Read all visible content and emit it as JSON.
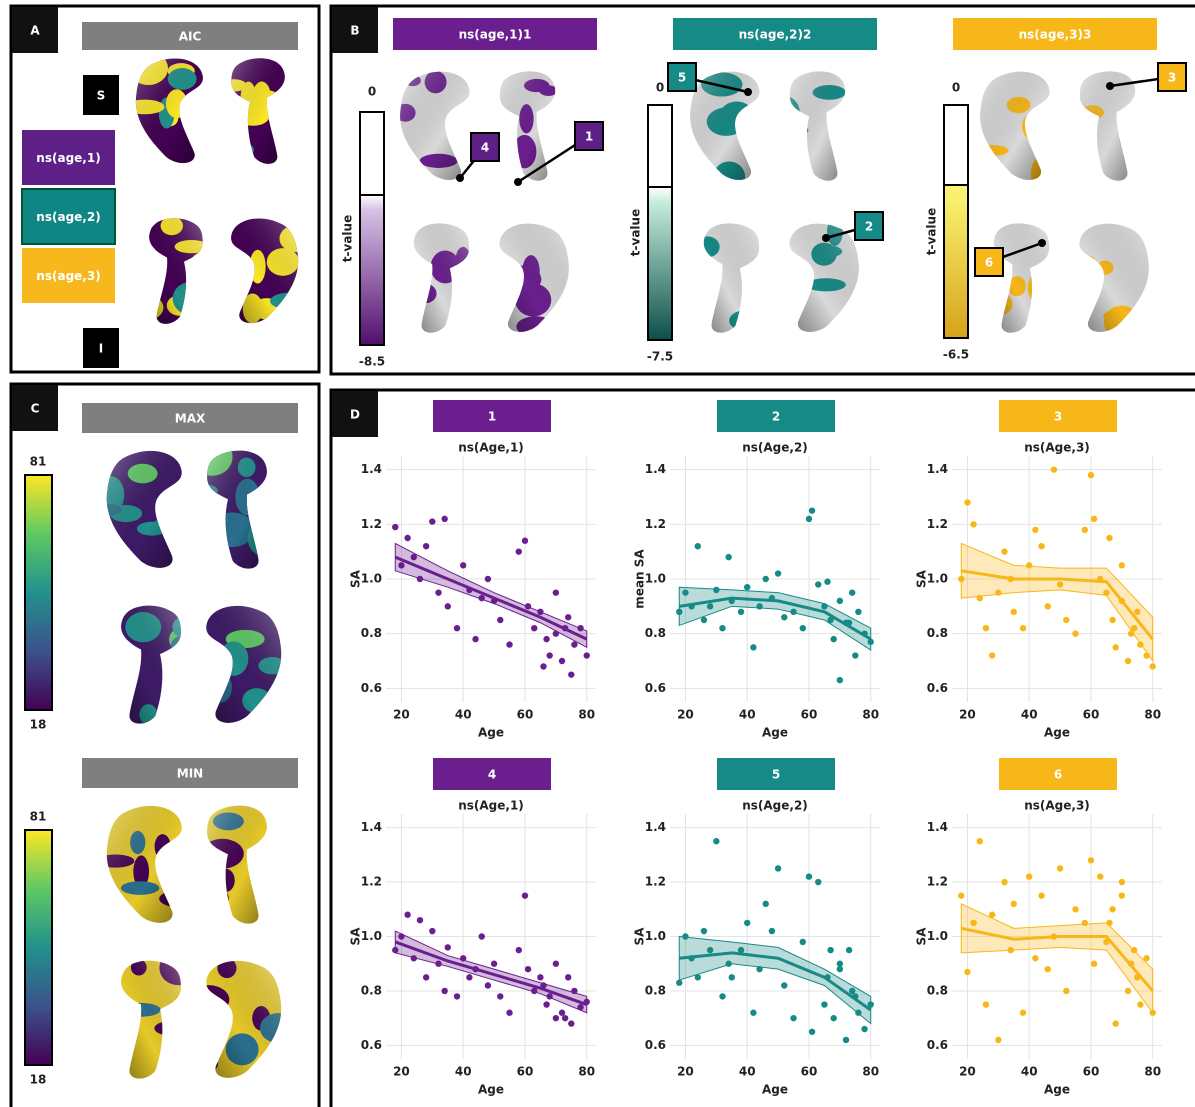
{
  "panel_a": {
    "label": "A",
    "header": "AIC",
    "views": [
      "S",
      "I"
    ],
    "legend": [
      "ns(age,1)",
      "ns(age,2)",
      "ns(age,3)"
    ],
    "colors": [
      "#5e1f86",
      "#0f8683",
      "#f7b81e"
    ]
  },
  "panel_b": {
    "label": "B",
    "scale_label": "t-value",
    "maps": [
      {
        "header": "ns(age,1)1",
        "color": "#6b1f8f",
        "scale": [
          0,
          -8.5
        ]
      },
      {
        "header": "ns(age,2)2",
        "color": "#168a86",
        "scale": [
          0,
          -7.5
        ]
      },
      {
        "header": "ns(age,3)3",
        "color": "#f8b719",
        "scale": [
          0,
          -6.5
        ]
      }
    ],
    "callouts": [
      "1",
      "2",
      "3",
      "4",
      "5",
      "6"
    ]
  },
  "panel_c": {
    "label": "C",
    "maps": [
      {
        "header": "MAX",
        "scale": [
          81,
          18
        ]
      },
      {
        "header": "MIN",
        "scale": [
          81,
          18
        ]
      }
    ]
  },
  "panel_d": {
    "label": "D"
  },
  "chart_data": [
    {
      "type": "scatter",
      "header": "1",
      "title": "ns(Age,1)",
      "y_label": "SA",
      "x_label": "Age",
      "color": "#6b1f8f",
      "grid": true,
      "xlim": [
        15,
        83
      ],
      "ylim": [
        0.55,
        1.45
      ],
      "xticks": [
        20,
        40,
        60,
        80
      ],
      "yticks": [
        0.6,
        0.8,
        {
          "value": 1,
          "label": "1.0"
        },
        1.2,
        1.4
      ],
      "x": [
        18,
        20,
        22,
        24,
        26,
        28,
        30,
        32,
        34,
        35,
        38,
        40,
        42,
        44,
        46,
        48,
        50,
        52,
        55,
        58,
        60,
        61,
        63,
        65,
        67,
        68,
        70,
        72,
        74,
        75,
        76,
        78,
        80,
        70,
        66,
        73
      ],
      "values": [
        1.19,
        1.05,
        1.15,
        1.08,
        1.0,
        1.12,
        1.21,
        0.95,
        1.22,
        0.9,
        0.82,
        1.05,
        0.96,
        0.78,
        0.93,
        1.0,
        0.92,
        0.85,
        0.76,
        1.1,
        1.14,
        0.9,
        0.82,
        0.88,
        0.78,
        0.72,
        0.8,
        0.7,
        0.86,
        0.65,
        0.76,
        0.82,
        0.72,
        0.95,
        0.68,
        0.82
      ],
      "fit": {
        "x": [
          18,
          35,
          50,
          65,
          80
        ],
        "values": [
          1.08,
          1.0,
          0.93,
          0.86,
          0.78
        ],
        "lower": [
          1.03,
          0.97,
          0.91,
          0.84,
          0.75
        ],
        "upper": [
          1.13,
          1.03,
          0.95,
          0.88,
          0.81
        ]
      }
    },
    {
      "type": "scatter",
      "header": "2",
      "title": "ns(Age,2)",
      "y_label": "mean SA",
      "x_label": "Age",
      "color": "#168a86",
      "grid": true,
      "xlim": [
        15,
        83
      ],
      "ylim": [
        0.55,
        1.45
      ],
      "xticks": [
        20,
        40,
        60,
        80
      ],
      "yticks": [
        0.6,
        0.8,
        {
          "value": 1,
          "label": "1.0"
        },
        1.2,
        1.4
      ],
      "x": [
        18,
        20,
        22,
        24,
        26,
        28,
        30,
        32,
        34,
        35,
        38,
        40,
        42,
        44,
        46,
        48,
        50,
        52,
        55,
        58,
        60,
        61,
        63,
        65,
        67,
        68,
        70,
        72,
        74,
        75,
        76,
        78,
        80,
        70,
        66,
        73
      ],
      "values": [
        0.88,
        0.95,
        0.9,
        1.12,
        0.85,
        0.9,
        0.96,
        0.82,
        1.08,
        0.92,
        0.88,
        0.97,
        0.75,
        0.9,
        1.0,
        0.93,
        1.02,
        0.86,
        0.88,
        0.82,
        1.22,
        1.25,
        0.98,
        0.9,
        0.85,
        0.78,
        0.63,
        0.84,
        0.95,
        0.72,
        0.88,
        0.8,
        0.77,
        0.92,
        0.99,
        0.84
      ],
      "fit": {
        "x": [
          18,
          35,
          50,
          65,
          80
        ],
        "values": [
          0.9,
          0.93,
          0.92,
          0.88,
          0.78
        ],
        "lower": [
          0.83,
          0.9,
          0.89,
          0.85,
          0.74
        ],
        "upper": [
          0.97,
          0.96,
          0.95,
          0.91,
          0.82
        ]
      }
    },
    {
      "type": "scatter",
      "header": "3",
      "title": "ns(Age,3)",
      "y_label": "SA",
      "x_label": "Age",
      "color": "#f8b719",
      "grid": true,
      "xlim": [
        15,
        83
      ],
      "ylim": [
        0.55,
        1.45
      ],
      "xticks": [
        20,
        40,
        60,
        80
      ],
      "yticks": [
        0.6,
        0.8,
        {
          "value": 1,
          "label": "1.0"
        },
        1.2,
        1.4
      ],
      "x": [
        18,
        20,
        22,
        24,
        26,
        28,
        30,
        32,
        34,
        35,
        38,
        40,
        42,
        44,
        46,
        48,
        50,
        52,
        55,
        58,
        60,
        61,
        63,
        65,
        67,
        68,
        70,
        72,
        74,
        75,
        76,
        78,
        80,
        70,
        66,
        73
      ],
      "values": [
        1.0,
        1.28,
        1.2,
        0.93,
        0.82,
        0.72,
        0.95,
        1.1,
        1.0,
        0.88,
        0.82,
        1.05,
        1.18,
        1.12,
        0.9,
        1.4,
        0.98,
        0.85,
        0.8,
        1.18,
        1.38,
        1.22,
        1.0,
        0.95,
        0.85,
        0.75,
        1.05,
        0.7,
        0.82,
        0.88,
        0.76,
        0.72,
        0.68,
        0.92,
        1.15,
        0.8
      ],
      "fit": {
        "x": [
          18,
          35,
          50,
          65,
          80
        ],
        "values": [
          1.03,
          1.0,
          1.0,
          0.99,
          0.78
        ],
        "lower": [
          0.93,
          0.95,
          0.96,
          0.94,
          0.7
        ],
        "upper": [
          1.13,
          1.05,
          1.04,
          1.04,
          0.86
        ]
      }
    },
    {
      "type": "scatter",
      "header": "4",
      "title": "ns(Age,1)",
      "y_label": "SA",
      "x_label": "Age",
      "color": "#6b1f8f",
      "grid": true,
      "xlim": [
        15,
        83
      ],
      "ylim": [
        0.55,
        1.45
      ],
      "xticks": [
        20,
        40,
        60,
        80
      ],
      "yticks": [
        0.6,
        0.8,
        {
          "value": 1,
          "label": "1.0"
        },
        1.2,
        1.4
      ],
      "x": [
        18,
        20,
        22,
        24,
        26,
        28,
        30,
        32,
        34,
        35,
        38,
        40,
        42,
        44,
        46,
        48,
        50,
        52,
        55,
        58,
        60,
        61,
        63,
        65,
        67,
        68,
        70,
        72,
        74,
        75,
        76,
        78,
        80,
        70,
        66,
        73
      ],
      "values": [
        0.95,
        1.0,
        1.08,
        0.92,
        1.06,
        0.85,
        1.02,
        0.9,
        0.8,
        0.96,
        0.78,
        0.92,
        0.85,
        0.88,
        1.0,
        0.82,
        0.9,
        0.78,
        0.72,
        0.95,
        1.15,
        0.88,
        0.8,
        0.85,
        0.75,
        0.78,
        0.7,
        0.72,
        0.85,
        0.68,
        0.8,
        0.74,
        0.76,
        0.9,
        0.82,
        0.7
      ],
      "fit": {
        "x": [
          18,
          35,
          50,
          65,
          80
        ],
        "values": [
          0.98,
          0.91,
          0.86,
          0.81,
          0.75
        ],
        "lower": [
          0.94,
          0.89,
          0.84,
          0.79,
          0.72
        ],
        "upper": [
          1.02,
          0.93,
          0.88,
          0.83,
          0.78
        ]
      }
    },
    {
      "type": "scatter",
      "header": "5",
      "title": "ns(Age,2)",
      "y_label": "SA",
      "x_label": "Age",
      "color": "#168a86",
      "grid": true,
      "xlim": [
        15,
        83
      ],
      "ylim": [
        0.55,
        1.45
      ],
      "xticks": [
        20,
        40,
        60,
        80
      ],
      "yticks": [
        0.6,
        0.8,
        {
          "value": 1,
          "label": "1.0"
        },
        1.2,
        1.4
      ],
      "x": [
        18,
        20,
        22,
        24,
        26,
        28,
        30,
        32,
        34,
        35,
        38,
        40,
        42,
        44,
        46,
        48,
        50,
        52,
        55,
        58,
        60,
        61,
        63,
        65,
        67,
        68,
        70,
        72,
        74,
        75,
        76,
        78,
        80,
        70,
        66,
        73
      ],
      "values": [
        0.83,
        1.0,
        0.92,
        0.85,
        1.02,
        0.95,
        1.35,
        0.78,
        0.9,
        0.85,
        0.95,
        1.05,
        0.72,
        0.88,
        1.12,
        1.02,
        1.25,
        0.82,
        0.7,
        0.98,
        1.22,
        0.65,
        1.2,
        0.75,
        0.95,
        0.7,
        0.88,
        0.62,
        0.8,
        0.78,
        0.72,
        0.66,
        0.75,
        0.9,
        0.85,
        0.95
      ],
      "fit": {
        "x": [
          18,
          35,
          50,
          65,
          80
        ],
        "values": [
          0.92,
          0.94,
          0.92,
          0.85,
          0.73
        ],
        "lower": [
          0.84,
          0.9,
          0.88,
          0.82,
          0.68
        ],
        "upper": [
          1.0,
          0.98,
          0.96,
          0.88,
          0.78
        ]
      }
    },
    {
      "type": "scatter",
      "header": "6",
      "title": "ns(Age,3)",
      "y_label": "SA",
      "x_label": "Age",
      "color": "#f8b719",
      "grid": true,
      "xlim": [
        15,
        83
      ],
      "ylim": [
        0.55,
        1.45
      ],
      "xticks": [
        20,
        40,
        60,
        80
      ],
      "yticks": [
        0.6,
        0.8,
        {
          "value": 1,
          "label": "1.0"
        },
        1.2,
        1.4
      ],
      "x": [
        18,
        20,
        22,
        24,
        26,
        28,
        30,
        32,
        34,
        35,
        38,
        40,
        42,
        44,
        46,
        48,
        50,
        52,
        55,
        58,
        60,
        61,
        63,
        65,
        67,
        68,
        70,
        72,
        74,
        75,
        76,
        78,
        80,
        70,
        66,
        73
      ],
      "values": [
        1.15,
        0.87,
        1.05,
        1.35,
        0.75,
        1.08,
        0.62,
        1.2,
        0.95,
        1.12,
        0.72,
        1.22,
        0.92,
        1.15,
        0.88,
        1.0,
        1.25,
        0.8,
        1.1,
        1.05,
        1.28,
        0.9,
        1.22,
        0.98,
        1.1,
        0.68,
        1.15,
        0.8,
        0.95,
        0.85,
        0.75,
        0.92,
        0.72,
        1.2,
        1.05,
        0.9
      ],
      "fit": {
        "x": [
          18,
          35,
          50,
          65,
          80
        ],
        "values": [
          1.03,
          0.99,
          1.0,
          1.0,
          0.8
        ],
        "lower": [
          0.94,
          0.95,
          0.96,
          0.95,
          0.72
        ],
        "upper": [
          1.12,
          1.03,
          1.04,
          1.05,
          0.88
        ]
      }
    }
  ]
}
